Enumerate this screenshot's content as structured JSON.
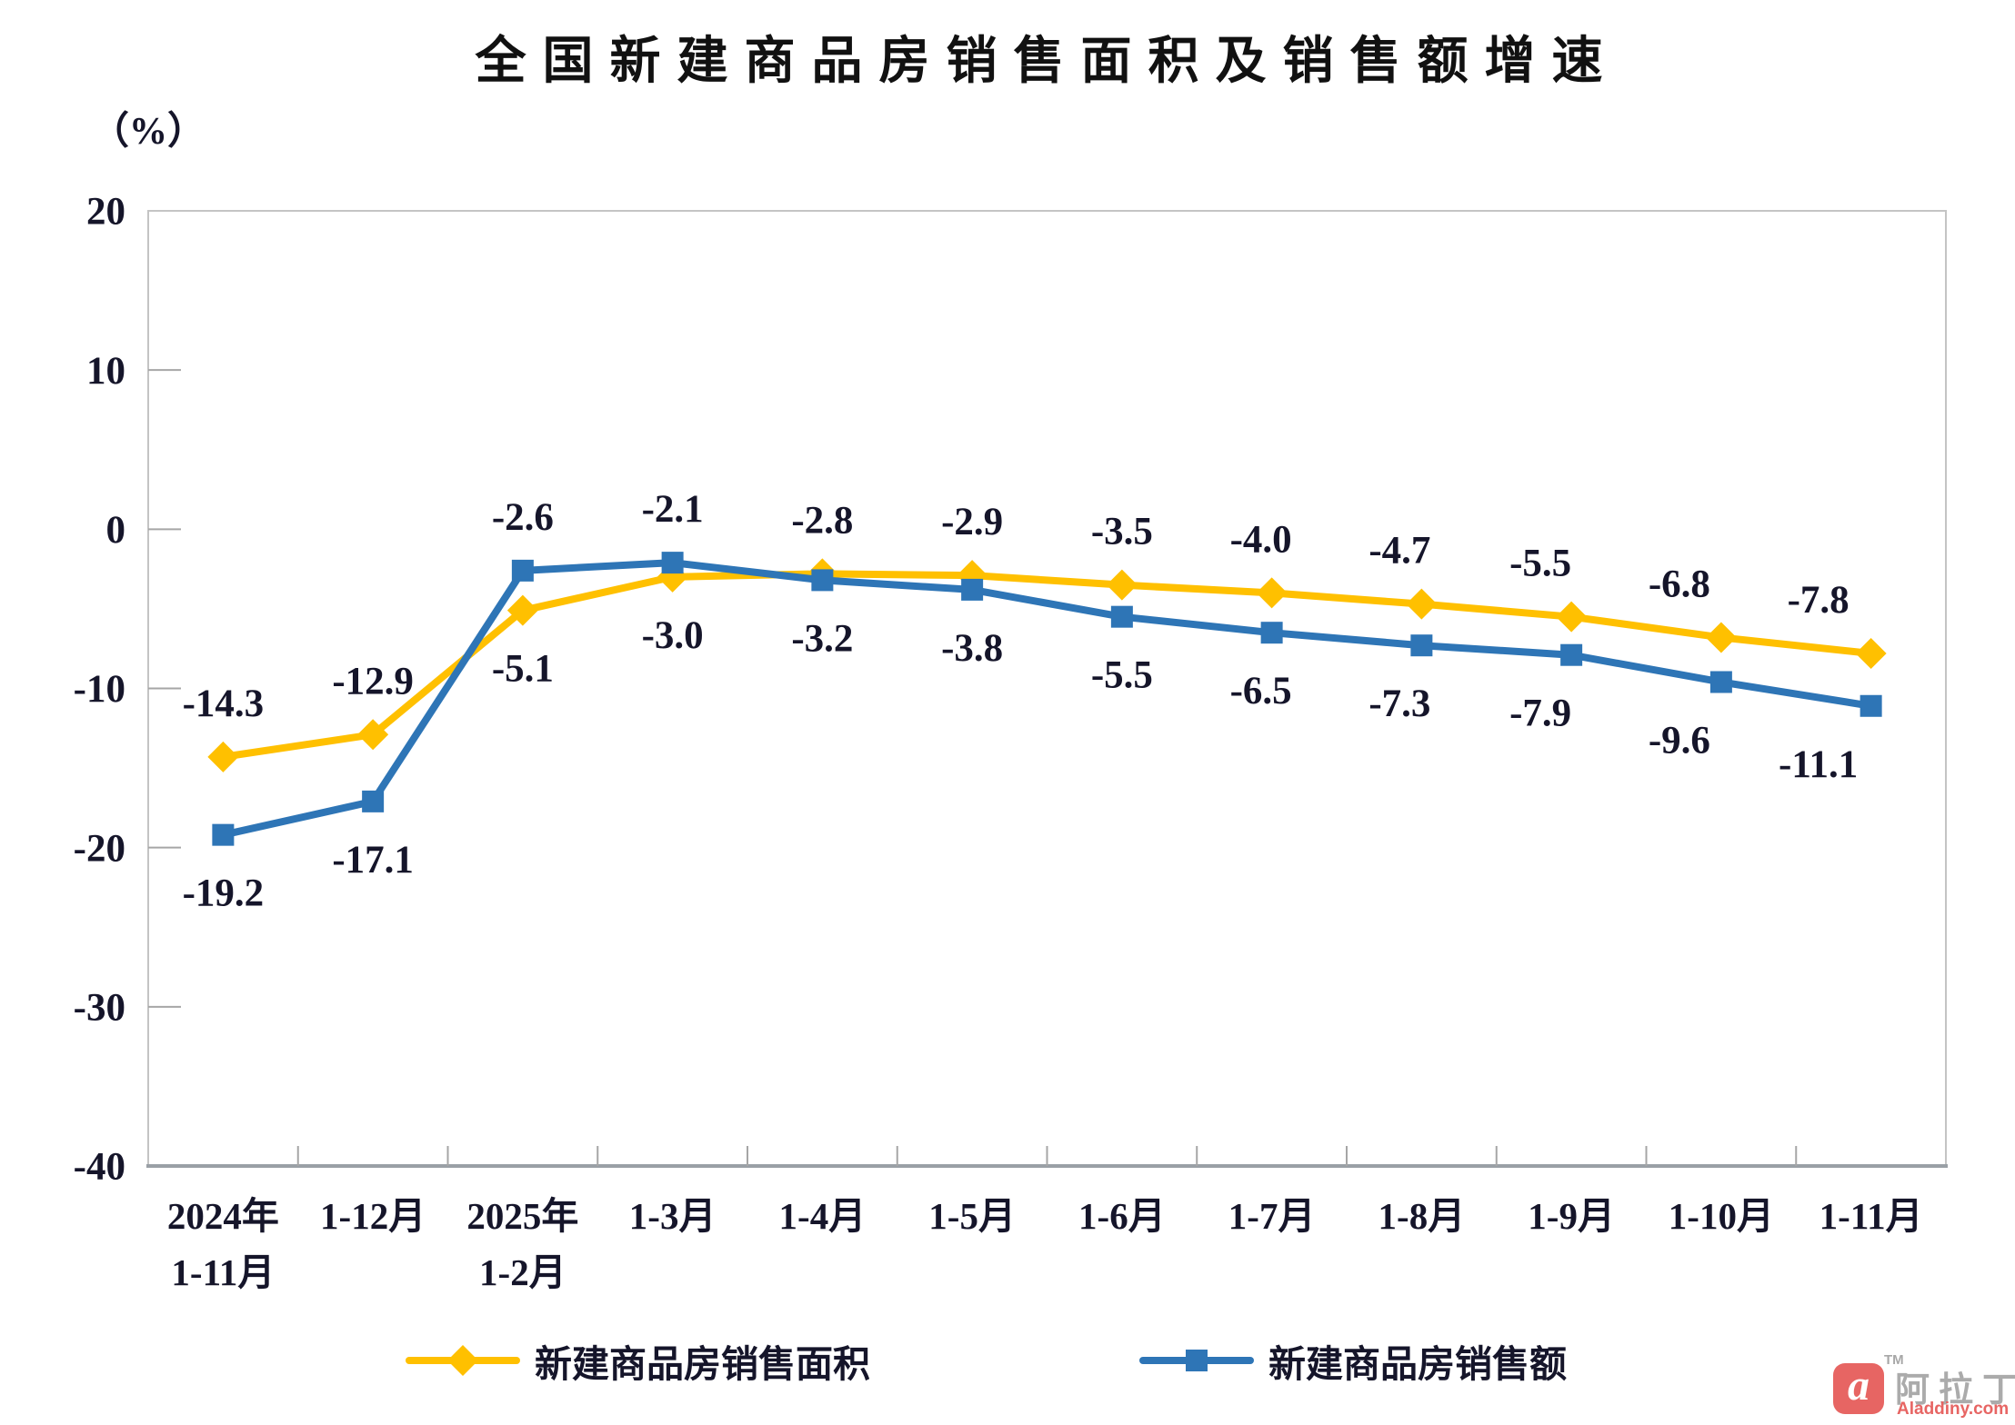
{
  "chart_data": {
    "type": "line",
    "title": "全国新建商品房销售面积及销售额增速",
    "unit_label": "（%）",
    "categories": [
      [
        "2024年",
        "1-11月"
      ],
      [
        "1-12月"
      ],
      [
        "2025年",
        "1-2月"
      ],
      [
        "1-3月"
      ],
      [
        "1-4月"
      ],
      [
        "1-5月"
      ],
      [
        "1-6月"
      ],
      [
        "1-7月"
      ],
      [
        "1-8月"
      ],
      [
        "1-9月"
      ],
      [
        "1-10月"
      ],
      [
        "1-11月"
      ]
    ],
    "series": [
      {
        "id": "sales-area",
        "name": "新建商品房销售面积",
        "color": "#FFC000",
        "marker": "diamond",
        "values": [
          -14.3,
          -12.9,
          -5.1,
          -3.0,
          -2.8,
          -2.9,
          -3.5,
          -4.0,
          -4.7,
          -5.5,
          -6.8,
          -7.8
        ],
        "label_side": [
          "above",
          "above",
          "below",
          "below",
          "above",
          "above",
          "above",
          "above",
          "above",
          "above",
          "above",
          "above"
        ]
      },
      {
        "id": "sales-amount",
        "name": "新建商品房销售额",
        "color": "#2E75B6",
        "marker": "square",
        "values": [
          -19.2,
          -17.1,
          -2.6,
          -2.1,
          -3.2,
          -3.8,
          -5.5,
          -6.5,
          -7.3,
          -7.9,
          -9.6,
          -11.1
        ],
        "label_side": [
          "below",
          "below",
          "above",
          "above",
          "below",
          "below",
          "below",
          "below",
          "below",
          "below",
          "below",
          "below"
        ]
      }
    ],
    "ylim": [
      -40,
      20
    ],
    "yticks": [
      20,
      10,
      0,
      -10,
      -20,
      -30,
      -40
    ],
    "grid": false,
    "legend_position": "bottom",
    "colors": {
      "text": "#15152a",
      "border": "#c4c4c4",
      "axis": "#9aa0a6",
      "tick": "#a6a6a6"
    }
  },
  "watermark": {
    "logo_letter": "a",
    "tm": "TM",
    "name_cn": "阿拉丁",
    "site": "Aladdiny.com",
    "red": "#E4504E",
    "gray": "#A0A0A0"
  }
}
